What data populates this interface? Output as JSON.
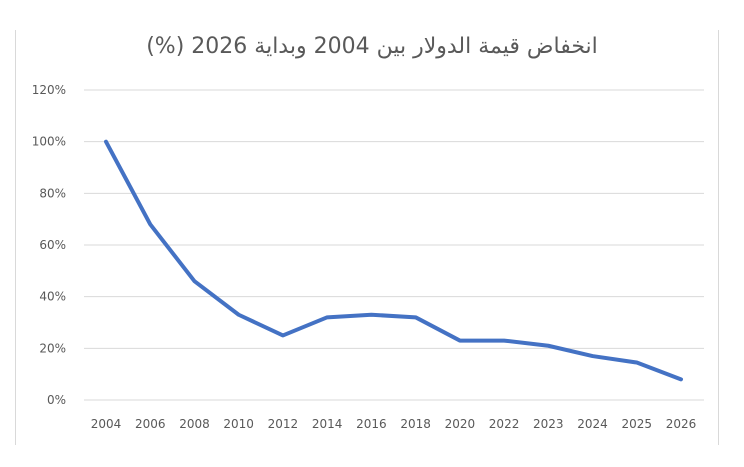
{
  "chart_data": {
    "type": "line",
    "title": "انخفاض قيمة الدولار بين 2004 وبداية 2026 (%)",
    "categories": [
      "2004",
      "2006",
      "2008",
      "2010",
      "2012",
      "2014",
      "2016",
      "2018",
      "2020",
      "2022",
      "2023",
      "2024",
      "2025",
      "2026"
    ],
    "series": [
      {
        "values": [
          100,
          68,
          46,
          33,
          25,
          32,
          33,
          32,
          23,
          23,
          21,
          17,
          14.5,
          8
        ],
        "color": "#4472c4"
      }
    ],
    "y_ticks": [
      "0%",
      "20%",
      "40%",
      "60%",
      "80%",
      "100%",
      "120%"
    ],
    "ylim": [
      0,
      120
    ],
    "grid": true,
    "legend": "none"
  }
}
